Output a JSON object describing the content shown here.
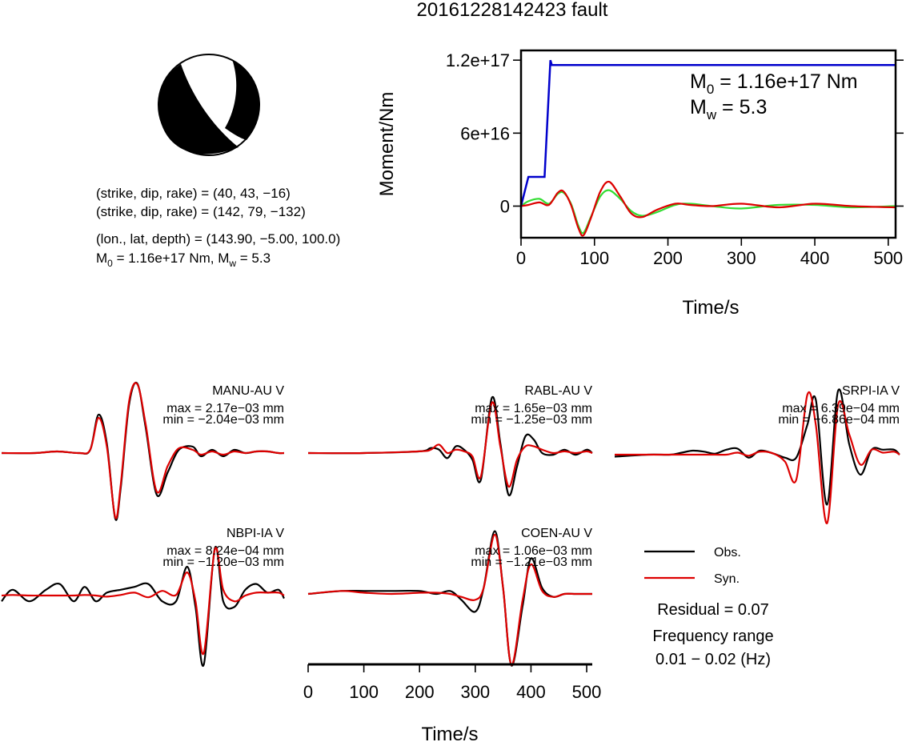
{
  "title": "20161228142423 fault",
  "beachball": {
    "fill": "#000000",
    "planes": [
      {
        "strike": 40,
        "dip": 43,
        "rake": -16
      },
      {
        "strike": 142,
        "dip": 79,
        "rake": -132
      }
    ]
  },
  "params": {
    "line1": "(strike, dip, rake) = (40, 43, −16)",
    "line2": "(strike, dip, rake) = (142, 79, −132)",
    "line3": "(lon., lat, depth) = (143.90, −5.00, 100.0)",
    "line4_m": "M",
    "line4_sub": "0",
    "line4_a": " = 1.16e+17 Nm, M",
    "line4_w": "w",
    "line4_b": " = 5.3"
  },
  "moment_annotation": {
    "m0_label": "M",
    "m0_sub": "0",
    "m0_value": " = 1.16e+17 Nm",
    "mw_label": "M",
    "mw_sub": "w",
    "mw_value": " = 5.3"
  },
  "legend": {
    "obs_label": "Obs.",
    "syn_label": "Syn.",
    "residual": "Residual = 0.07",
    "freq_label": "Frequency range",
    "freq_value": "0.01 − 0.02 (Hz)"
  },
  "colors": {
    "moment": "#0000cc",
    "stf_green": "#33dd33",
    "stf_red": "#dd0000",
    "obs": "#000000",
    "syn": "#dd0000"
  },
  "chart_data": [
    {
      "type": "line",
      "xlabel": "Time/s",
      "ylabel": "Moment/Nm",
      "xlim": [
        0,
        510
      ],
      "ylim": [
        -2.6e+16,
        1.28e+17
      ],
      "xticks": [
        0,
        100,
        200,
        300,
        400,
        500
      ],
      "yticks": [
        0,
        6e+16,
        1.2e+17
      ],
      "yticklabels": [
        "0",
        "6e+16",
        "1.2e+17"
      ],
      "grid": false,
      "series": [
        {
          "key": "moment",
          "color": "#0000cc",
          "x": [
            0,
            10,
            12,
            30,
            32,
            40,
            42,
            510
          ],
          "y": [
            0,
            2.4e+16,
            2.4e+16,
            2.4e+16,
            2.4e+16,
            1.2e+17,
            1.16e+17,
            1.16e+17
          ]
        },
        {
          "key": "stf_green",
          "color": "#33dd33",
          "x": [
            0,
            10,
            25,
            38,
            50,
            58,
            68,
            78,
            85,
            95,
            108,
            120,
            135,
            150,
            165,
            185,
            210,
            230,
            260,
            300,
            350,
            400,
            450,
            510
          ],
          "y": [
            0,
            4000000000000000.0,
            6000000000000000.0,
            2000000000000000.0,
            1e+16,
            1.1e+16,
            2000000000000000.0,
            -1.6e+16,
            -2.2e+16,
            -9000000000000000.0,
            8000000000000000.0,
            1.3e+16,
            6000000000000000.0,
            -4000000000000000.0,
            -8000000000000000.0,
            -5000000000000000.0,
            1000000000000000.0,
            2000000000000000.0,
            0,
            -2000000000000000.0,
            1000000000000000.0,
            1000000000000000.0,
            -1000000000000000.0,
            0
          ]
        },
        {
          "key": "stf_red",
          "color": "#dd0000",
          "x": [
            0,
            10,
            25,
            38,
            50,
            58,
            68,
            78,
            85,
            95,
            108,
            120,
            135,
            150,
            165,
            185,
            210,
            230,
            260,
            300,
            350,
            400,
            450,
            510
          ],
          "y": [
            0,
            1000000000000000.0,
            3000000000000000.0,
            1000000000000000.0,
            1.1e+16,
            1.2e+16,
            1000000000000000.0,
            -1.8e+16,
            -2.4e+16,
            -1e+16,
            1.2e+16,
            2e+16,
            8000000000000000.0,
            -6000000000000000.0,
            -9000000000000000.0,
            -3000000000000000.0,
            2000000000000000.0,
            1000000000000000.0,
            0,
            2000000000000000.0,
            -1000000000000000.0,
            2000000000000000.0,
            0,
            -1000000000000000.0
          ]
        }
      ]
    },
    {
      "type": "line",
      "name": "waveforms",
      "xlabel": "Time/s",
      "xlim": [
        0,
        510
      ],
      "xticks": [
        0,
        100,
        200,
        300,
        400,
        500
      ],
      "stations": [
        {
          "name": "MANU-AU V",
          "max": "max = 2.17e−03 mm",
          "min": "min = −2.04e−03 mm",
          "peak": 2.17,
          "trough": -2.04,
          "obs_x": [
            0,
            60,
            100,
            140,
            160,
            175,
            190,
            205,
            215,
            230,
            245,
            260,
            280,
            300,
            320,
            345,
            360,
            380,
            400,
            420,
            440,
            460,
            480,
            500,
            510
          ],
          "obs_y": [
            0,
            0,
            0.05,
            0,
            0.1,
            1.2,
            0.3,
            -2.04,
            -1.1,
            1.5,
            2.17,
            0.8,
            -1.3,
            -0.6,
            0.1,
            0.2,
            -0.1,
            0.1,
            -0.1,
            0.1,
            0,
            0.05,
            0.05,
            0,
            0
          ],
          "syn_x": [
            0,
            60,
            100,
            140,
            160,
            175,
            190,
            205,
            215,
            230,
            245,
            260,
            280,
            300,
            320,
            345,
            360,
            380,
            400,
            420,
            440,
            460,
            480,
            500,
            510
          ],
          "syn_y": [
            0,
            0,
            0.05,
            0,
            0.1,
            1.1,
            0.2,
            -2.0,
            -1.0,
            1.6,
            2.15,
            0.9,
            -1.2,
            -0.4,
            0.15,
            0.1,
            -0.05,
            0.05,
            -0.05,
            0.05,
            0,
            0.05,
            0.05,
            0,
            0
          ]
        },
        {
          "name": "RABL-AU V",
          "max": "max = 1.65e−03 mm",
          "min": "min = −1.25e−03 mm",
          "peak": 1.65,
          "trough": -1.25,
          "obs_x": [
            0,
            100,
            200,
            220,
            235,
            250,
            265,
            280,
            295,
            310,
            330,
            345,
            360,
            375,
            390,
            405,
            420,
            440,
            460,
            480,
            500,
            510
          ],
          "obs_y": [
            0,
            0,
            0.05,
            0.15,
            0.1,
            -0.15,
            0.2,
            0.1,
            -0.2,
            -0.8,
            1.65,
            0.3,
            -1.25,
            -0.4,
            0.5,
            0.4,
            0,
            -0.05,
            0.1,
            -0.05,
            0.1,
            0
          ],
          "syn_x": [
            0,
            100,
            200,
            220,
            235,
            250,
            265,
            280,
            295,
            310,
            330,
            345,
            360,
            375,
            390,
            405,
            420,
            440,
            460,
            480,
            500,
            510
          ],
          "syn_y": [
            0,
            0,
            0.05,
            0.1,
            0.25,
            0,
            0.1,
            0.05,
            -0.1,
            -0.7,
            1.5,
            0.2,
            -1.0,
            -0.2,
            0.2,
            0.2,
            0.1,
            0,
            0.05,
            0,
            0.05,
            0
          ]
        },
        {
          "name": "SRPI-IA V",
          "max": "max = 6.39e−04 mm",
          "min": "min = −6.86e−04 mm",
          "peak": 0.639,
          "trough": -0.686,
          "obs_x": [
            0,
            60,
            100,
            120,
            140,
            160,
            180,
            200,
            220,
            240,
            260,
            285,
            305,
            325,
            345,
            360,
            380,
            400,
            420,
            440,
            460,
            480,
            500,
            510
          ],
          "obs_y": [
            -0.02,
            0,
            0,
            0.02,
            0.04,
            0.03,
            0.01,
            0.05,
            0.06,
            -0.03,
            0.04,
            0.01,
            -0.03,
            -0.03,
            0.3,
            0.55,
            -0.5,
            0.64,
            0.1,
            -0.2,
            0.05,
            0.05,
            0.05,
            0
          ],
          "syn_x": [
            0,
            60,
            100,
            120,
            140,
            160,
            180,
            200,
            220,
            240,
            260,
            285,
            305,
            325,
            345,
            360,
            380,
            400,
            420,
            440,
            460,
            480,
            500,
            510
          ],
          "syn_y": [
            0,
            0,
            0,
            0,
            0,
            0,
            0,
            0,
            0.02,
            -0.01,
            0.03,
            0.01,
            -0.07,
            -0.25,
            0.6,
            0.3,
            -0.686,
            0.5,
            0.2,
            -0.1,
            0.05,
            0.02,
            0.03,
            0
          ]
        }
      ],
      "stations_row2": [
        {
          "name": "NBPI-IA V",
          "max": "max = 8.24e−04 mm",
          "min": "min = −1.20e−03 mm",
          "peak": 0.824,
          "trough": -1.2,
          "obs_x": [
            0,
            20,
            50,
            80,
            105,
            130,
            150,
            170,
            190,
            215,
            240,
            265,
            290,
            315,
            335,
            350,
            365,
            385,
            400,
            420,
            440,
            460,
            480,
            500,
            510
          ],
          "obs_y": [
            -0.1,
            0.1,
            -0.1,
            0.1,
            0.2,
            -0.1,
            0.15,
            -0.1,
            0.05,
            0.1,
            0.15,
            0.2,
            -0.1,
            -0.1,
            0.5,
            -0.2,
            -1.2,
            0.824,
            -0.1,
            -0.2,
            0.1,
            0.2,
            0.05,
            0.1,
            -0.05
          ],
          "syn_x": [
            0,
            20,
            50,
            80,
            105,
            130,
            150,
            170,
            190,
            215,
            240,
            265,
            290,
            315,
            335,
            350,
            365,
            385,
            400,
            420,
            440,
            460,
            480,
            500,
            510
          ],
          "syn_y": [
            0,
            0.01,
            0,
            0,
            0,
            0,
            0.01,
            0,
            -0.02,
            0.01,
            0.05,
            -0.03,
            0.08,
            0.01,
            0.4,
            -0.1,
            -1.0,
            0.8,
            0.1,
            -0.1,
            0,
            0.05,
            0.05,
            0.05,
            0
          ]
        },
        {
          "name": "COEN-AU V",
          "max": "max = 1.06e−03 mm",
          "min": "min = −1.21e−03 mm",
          "peak": 1.06,
          "trough": -1.21,
          "obs_x": [
            0,
            60,
            100,
            150,
            200,
            230,
            255,
            275,
            300,
            315,
            335,
            350,
            365,
            385,
            400,
            420,
            440,
            460,
            480,
            500,
            510
          ],
          "obs_y": [
            0,
            0.05,
            0.05,
            0.05,
            0.05,
            0,
            0.05,
            -0.1,
            -0.3,
            0.1,
            1.06,
            0.1,
            -1.21,
            -0.2,
            0.6,
            0.1,
            -0.05,
            0,
            0,
            0,
            0
          ],
          "syn_x": [
            0,
            60,
            100,
            150,
            200,
            230,
            255,
            275,
            300,
            315,
            335,
            350,
            365,
            385,
            400,
            420,
            440,
            460,
            480,
            500,
            510
          ],
          "syn_y": [
            0,
            0.05,
            0.02,
            0,
            0.02,
            0.02,
            0,
            -0.05,
            -0.1,
            0.1,
            1.0,
            0.1,
            -1.2,
            -0.1,
            0.5,
            0.05,
            -0.05,
            0,
            0,
            0,
            0
          ]
        }
      ]
    }
  ]
}
